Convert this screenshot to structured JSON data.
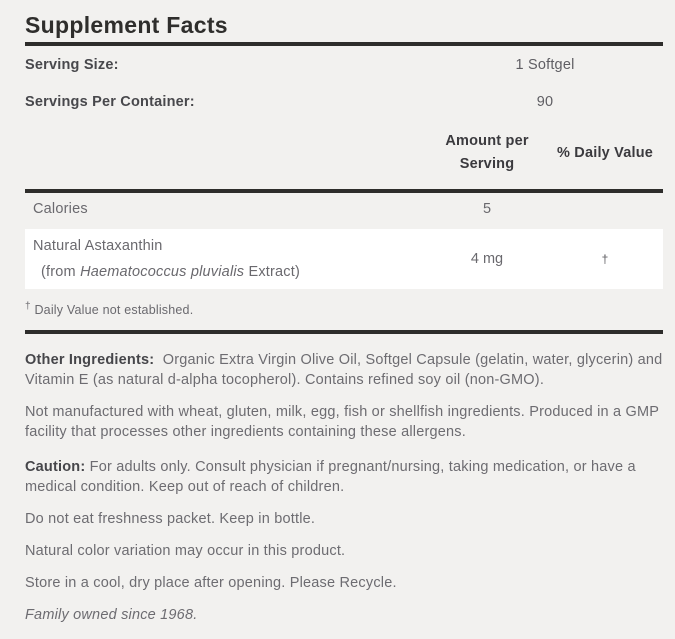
{
  "colors": {
    "background": "#f2f1ef",
    "card_background": "#ffffff",
    "rule": "#2e2d2b",
    "title_text": "#2f2e2c",
    "bold_label_text": "#48484c",
    "body_text": "#6d6c71"
  },
  "label": {
    "title": "Supplement Facts",
    "serving_rows": [
      {
        "label": "Serving Size:",
        "value": "1 Softgel"
      },
      {
        "label": "Servings Per Container:",
        "value": "90"
      }
    ],
    "table": {
      "amount_header_line1": "Amount per",
      "amount_header_line2": "Serving",
      "dv_header": "% Daily Value",
      "rows": [
        {
          "name": "Calories",
          "amount": "5",
          "dv": ""
        },
        {
          "name": "Natural Astaxanthin",
          "name_sub_prefix": "(from ",
          "name_sub_italic": "Haematococcus pluvialis",
          "name_sub_suffix": " Extract)",
          "amount": "4 mg",
          "dv": "†"
        }
      ]
    },
    "footnote_symbol": "†",
    "footnote_text": "Daily Value not established.",
    "other_ingredients": {
      "label": "Other Ingredients:",
      "text": "Organic Extra Virgin Olive Oil, Softgel Capsule (gelatin, water, glycerin) and Vitamin E (as natural d-alpha tocopherol). Contains refined soy oil (non-GMO)."
    },
    "allergen_statement": "Not manufactured with wheat, gluten, milk, egg, fish or shellfish ingredients. Produced in a GMP facility that processes other ingredients containing these allergens.",
    "caution": {
      "label": "Caution:",
      "text": "For adults only. Consult physician if pregnant/nursing, taking medication, or have a medical condition. Keep out of reach of children."
    },
    "note_freshness": "Do not eat freshness packet. Keep in bottle.",
    "note_color_variation": "Natural color variation may occur in this product.",
    "note_storage": "Store in a cool, dry place after opening. Please Recycle.",
    "tagline": "Family owned since 1968."
  }
}
